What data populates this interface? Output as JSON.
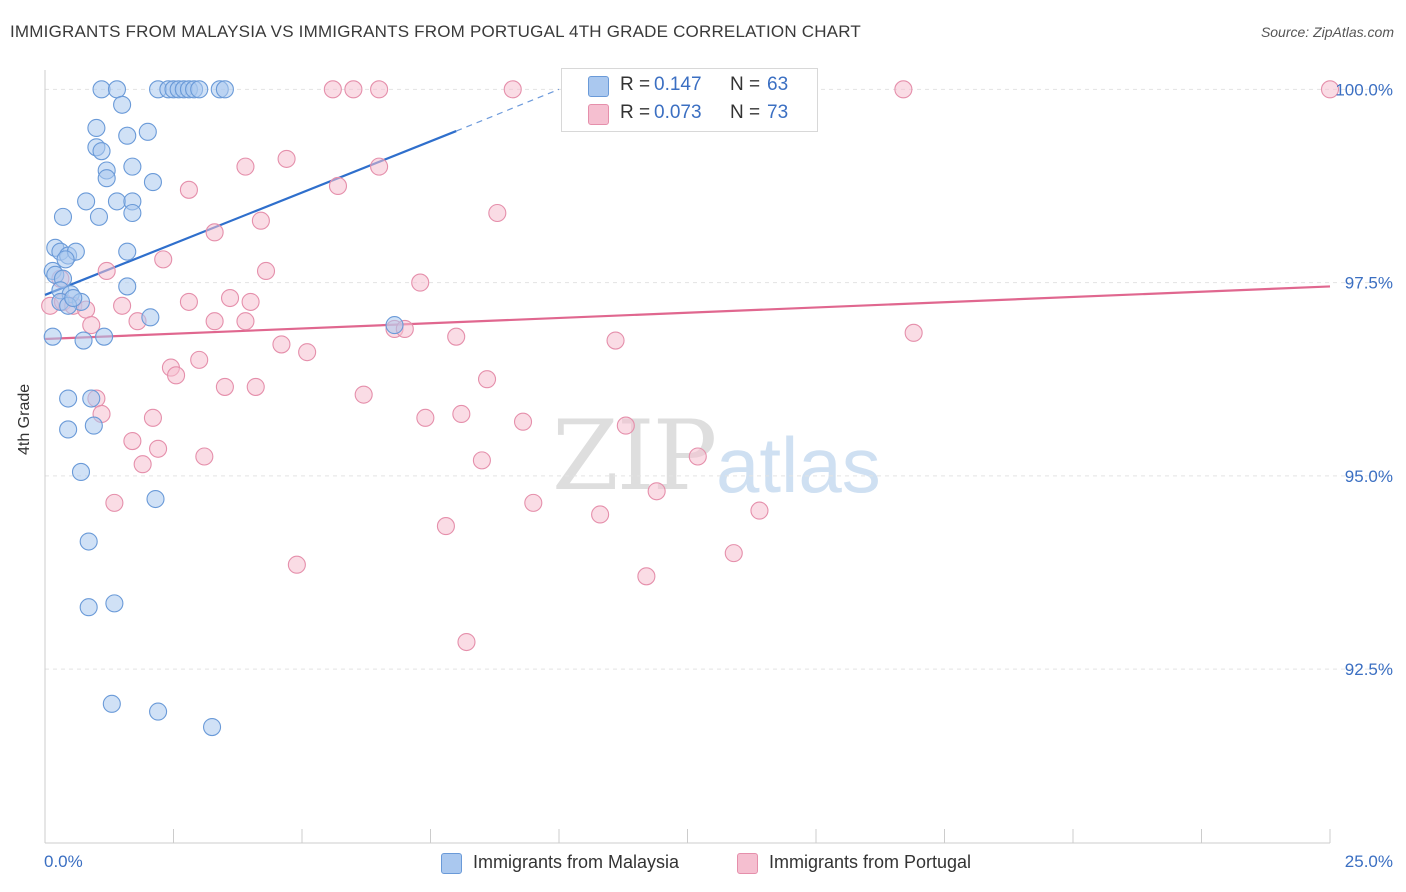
{
  "title": "IMMIGRANTS FROM MALAYSIA VS IMMIGRANTS FROM PORTUGAL 4TH GRADE CORRELATION CHART",
  "source": "Source: ZipAtlas.com",
  "watermark": {
    "zip": "ZIP",
    "atlas": "atlas"
  },
  "legend": {
    "rows": [
      {
        "r_label": "R =",
        "r_value": "0.147",
        "n_label": "N =",
        "n_value": "63"
      },
      {
        "r_label": "R =",
        "r_value": "0.073",
        "n_label": "N =",
        "n_value": "73"
      }
    ]
  },
  "bottom_legend": [
    "Immigrants from Malaysia",
    "Immigrants from Portugal"
  ],
  "colors": {
    "malaysia_fill": "#aac8ef",
    "malaysia_stroke": "#6a9ad8",
    "malaysia_line": "#2f6fcc",
    "portugal_fill": "#f5bfd0",
    "portugal_stroke": "#e58fab",
    "portugal_line": "#e0678f",
    "axis_text": "#3b6fc2",
    "grid": "#e3e3e3"
  },
  "chart_data": {
    "type": "scatter",
    "title": "IMMIGRANTS FROM MALAYSIA VS IMMIGRANTS FROM PORTUGAL 4TH GRADE CORRELATION CHART",
    "xlabel": "",
    "ylabel": "4th Grade",
    "x_tick_labels": [
      "0.0%",
      "25.0%"
    ],
    "y_tick_labels": [
      "100.0%",
      "97.5%",
      "95.0%",
      "92.5%"
    ],
    "y_ticks": [
      100.0,
      97.5,
      95.0,
      92.5
    ],
    "xlim": [
      0,
      25
    ],
    "ylim": [
      90.25,
      100.25
    ],
    "grid": true,
    "legend_position": "top-center",
    "series": [
      {
        "name": "Immigrants from Malaysia",
        "R": 0.147,
        "N": 63,
        "trend": {
          "x": [
            0.0,
            8.0
          ],
          "y": [
            97.34,
            99.46
          ],
          "dashed_to": [
            10.0,
            100.0
          ]
        },
        "points": [
          [
            1.1,
            100.0
          ],
          [
            1.4,
            100.0
          ],
          [
            2.2,
            100.0
          ],
          [
            2.4,
            100.0
          ],
          [
            2.5,
            100.0
          ],
          [
            2.6,
            100.0
          ],
          [
            2.7,
            100.0
          ],
          [
            2.8,
            100.0
          ],
          [
            2.9,
            100.0
          ],
          [
            3.0,
            100.0
          ],
          [
            3.4,
            100.0
          ],
          [
            3.5,
            100.0
          ],
          [
            1.5,
            99.8
          ],
          [
            1.0,
            99.5
          ],
          [
            2.0,
            99.45
          ],
          [
            1.6,
            99.4
          ],
          [
            1.0,
            99.25
          ],
          [
            1.1,
            99.2
          ],
          [
            1.7,
            99.0
          ],
          [
            1.2,
            98.95
          ],
          [
            1.2,
            98.85
          ],
          [
            2.1,
            98.8
          ],
          [
            0.8,
            98.55
          ],
          [
            1.4,
            98.55
          ],
          [
            1.7,
            98.55
          ],
          [
            1.7,
            98.4
          ],
          [
            0.35,
            98.35
          ],
          [
            1.05,
            98.35
          ],
          [
            0.2,
            97.95
          ],
          [
            0.3,
            97.9
          ],
          [
            0.45,
            97.85
          ],
          [
            0.6,
            97.9
          ],
          [
            1.6,
            97.9
          ],
          [
            0.4,
            97.8
          ],
          [
            0.15,
            97.65
          ],
          [
            0.2,
            97.6
          ],
          [
            0.35,
            97.55
          ],
          [
            0.3,
            97.4
          ],
          [
            0.5,
            97.35
          ],
          [
            1.6,
            97.45
          ],
          [
            0.7,
            97.25
          ],
          [
            0.3,
            97.25
          ],
          [
            0.45,
            97.2
          ],
          [
            0.55,
            97.3
          ],
          [
            2.05,
            97.05
          ],
          [
            6.8,
            96.95
          ],
          [
            0.15,
            96.8
          ],
          [
            0.75,
            96.75
          ],
          [
            1.15,
            96.8
          ],
          [
            0.45,
            96.0
          ],
          [
            0.9,
            96.0
          ],
          [
            0.45,
            95.6
          ],
          [
            0.95,
            95.65
          ],
          [
            0.7,
            95.05
          ],
          [
            2.15,
            94.7
          ],
          [
            0.85,
            94.15
          ],
          [
            0.85,
            93.3
          ],
          [
            1.35,
            93.35
          ],
          [
            1.3,
            92.05
          ],
          [
            2.2,
            91.95
          ],
          [
            3.25,
            91.75
          ]
        ]
      },
      {
        "name": "Immigrants from Portugal",
        "R": 0.073,
        "N": 73,
        "trend": {
          "x": [
            0.0,
            25.0
          ],
          "y": [
            96.77,
            97.45
          ]
        },
        "points": [
          [
            0.1,
            97.2
          ],
          [
            0.3,
            97.55
          ],
          [
            0.35,
            97.25
          ],
          [
            0.55,
            97.2
          ],
          [
            0.8,
            97.15
          ],
          [
            1.2,
            97.65
          ],
          [
            1.5,
            97.2
          ],
          [
            1.8,
            97.0
          ],
          [
            2.3,
            97.8
          ],
          [
            2.8,
            98.7
          ],
          [
            2.8,
            97.25
          ],
          [
            3.3,
            98.15
          ],
          [
            3.6,
            97.3
          ],
          [
            3.9,
            97.0
          ],
          [
            3.3,
            97.0
          ],
          [
            4.0,
            97.25
          ],
          [
            4.2,
            98.3
          ],
          [
            4.3,
            97.65
          ],
          [
            3.9,
            99.0
          ],
          [
            4.7,
            99.1
          ],
          [
            4.6,
            96.7
          ],
          [
            5.1,
            96.6
          ],
          [
            0.9,
            96.95
          ],
          [
            1.0,
            96.0
          ],
          [
            1.1,
            95.8
          ],
          [
            1.7,
            95.45
          ],
          [
            1.9,
            95.15
          ],
          [
            2.1,
            95.75
          ],
          [
            2.2,
            95.35
          ],
          [
            2.45,
            96.4
          ],
          [
            2.55,
            96.3
          ],
          [
            3.0,
            96.5
          ],
          [
            3.1,
            95.25
          ],
          [
            3.5,
            96.15
          ],
          [
            4.1,
            96.15
          ],
          [
            1.35,
            94.65
          ],
          [
            4.9,
            93.85
          ],
          [
            5.7,
            98.75
          ],
          [
            6.5,
            99.0
          ],
          [
            7.3,
            97.5
          ],
          [
            8.8,
            98.4
          ],
          [
            6.8,
            96.9
          ],
          [
            7.0,
            96.9
          ],
          [
            8.0,
            96.8
          ],
          [
            6.2,
            96.05
          ],
          [
            7.4,
            95.75
          ],
          [
            8.1,
            95.8
          ],
          [
            8.6,
            96.25
          ],
          [
            8.5,
            95.2
          ],
          [
            9.3,
            95.7
          ],
          [
            9.5,
            94.65
          ],
          [
            7.8,
            94.35
          ],
          [
            8.2,
            92.85
          ],
          [
            11.1,
            96.75
          ],
          [
            11.3,
            95.65
          ],
          [
            10.8,
            94.5
          ],
          [
            11.9,
            94.8
          ],
          [
            11.7,
            93.7
          ],
          [
            12.7,
            95.25
          ],
          [
            13.4,
            94.0
          ],
          [
            13.9,
            94.55
          ],
          [
            16.9,
            96.85
          ],
          [
            5.6,
            100.0
          ],
          [
            6.0,
            100.0
          ],
          [
            6.5,
            100.0
          ],
          [
            9.1,
            100.0
          ],
          [
            13.9,
            100.0
          ],
          [
            16.7,
            100.0
          ],
          [
            25.0,
            100.0
          ]
        ]
      }
    ]
  }
}
